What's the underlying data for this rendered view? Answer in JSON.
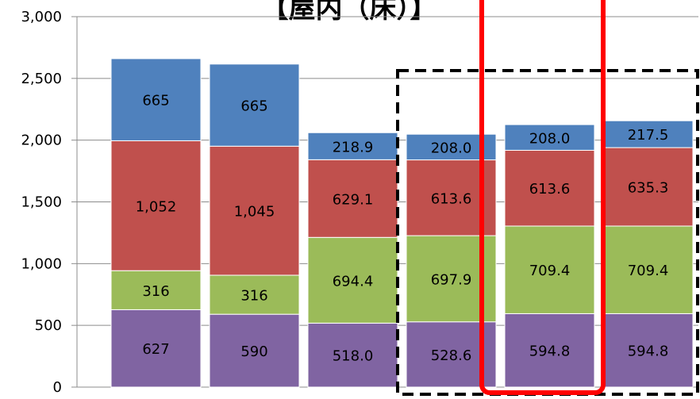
{
  "chart_data": {
    "type": "bar",
    "stacked": true,
    "title": "【屋内（床）】",
    "xlabel": "",
    "ylabel": "",
    "ylim": [
      0,
      3000
    ],
    "yticks": [
      "0",
      "500",
      "1,000",
      "1,500",
      "2,000",
      "2,500",
      "3,000"
    ],
    "grid": true,
    "legend": "none",
    "categories": [
      "",
      "",
      "",
      "",
      "",
      ""
    ],
    "series": [
      {
        "color": "#8064a2",
        "values": [
          627,
          590,
          518.0,
          528.6,
          594.8,
          594.8
        ],
        "labels": [
          "627",
          "590",
          "518.0",
          "528.6",
          "594.8",
          "594.8"
        ]
      },
      {
        "color": "#9bbb59",
        "values": [
          316,
          316,
          694.4,
          697.9,
          709.4,
          709.4
        ],
        "labels": [
          "316",
          "316",
          "694.4",
          "697.9",
          "709.4",
          "709.4"
        ]
      },
      {
        "color": "#c0504d",
        "values": [
          1052,
          1045,
          629.1,
          613.6,
          613.6,
          635.3
        ],
        "labels": [
          "1,052",
          "1,045",
          "629.1",
          "613.6",
          "613.6",
          "635.3"
        ]
      },
      {
        "color": "#4f81bd",
        "values": [
          665,
          665,
          218.9,
          208.0,
          208.0,
          217.5
        ],
        "labels": [
          "665",
          "665",
          "218.9",
          "208.0",
          "208.0",
          "217.5"
        ]
      }
    ],
    "annotations": [
      {
        "kind": "dashed-box",
        "color": "#000000",
        "covers": [
          3,
          5
        ]
      },
      {
        "kind": "red-box",
        "color": "#ff0000",
        "covers": [
          4,
          4
        ]
      }
    ]
  }
}
